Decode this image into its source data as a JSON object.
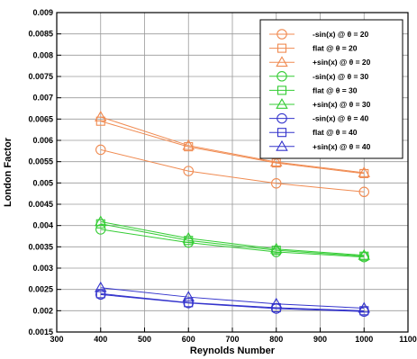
{
  "chart_data": {
    "type": "line",
    "title": "",
    "xlabel": "Reynolds Number",
    "ylabel": "London Factor",
    "xlim": [
      300,
      1100
    ],
    "ylim": [
      0.0015,
      0.009
    ],
    "x_ticks": [
      "300",
      "400",
      "500",
      "600",
      "700",
      "800",
      "900",
      "1000",
      "1100"
    ],
    "y_ticks": [
      "0.0015",
      "0.002",
      "0.0025",
      "0.003",
      "0.0035",
      "0.004",
      "0.0045",
      "0.005",
      "0.0055",
      "0.006",
      "0.0065",
      "0.007",
      "0.0075",
      "0.008",
      "0.0085",
      "0.009"
    ],
    "grid": true,
    "legend_position": "top-right",
    "x": [
      400,
      600,
      800,
      1000
    ],
    "series": [
      {
        "name": "-sin(x) @ θ = 20",
        "color": "#F08A50",
        "marker": "circle",
        "values": [
          0.00578,
          0.00528,
          0.00499,
          0.00479
        ]
      },
      {
        "name": "flat @ θ = 20",
        "color": "#F08A50",
        "marker": "square",
        "values": [
          0.00645,
          0.00585,
          0.00547,
          0.00522
        ]
      },
      {
        "name": "+sin(x) @ θ = 20",
        "color": "#F08A50",
        "marker": "triangle",
        "values": [
          0.00655,
          0.00588,
          0.00549,
          0.00524
        ]
      },
      {
        "name": "-sin(x) @ θ = 30",
        "color": "#33CC33",
        "marker": "circle",
        "values": [
          0.00391,
          0.0036,
          0.00338,
          0.00326
        ]
      },
      {
        "name": "flat @ θ = 30",
        "color": "#33CC33",
        "marker": "square",
        "values": [
          0.00404,
          0.00365,
          0.00342,
          0.00328
        ]
      },
      {
        "name": "+sin(x) @ θ = 30",
        "color": "#33CC33",
        "marker": "triangle",
        "values": [
          0.00409,
          0.0037,
          0.00345,
          0.0033
        ]
      },
      {
        "name": "-sin(x) @ θ = 40",
        "color": "#3333CC",
        "marker": "circle",
        "values": [
          0.00238,
          0.00218,
          0.00205,
          0.00198
        ]
      },
      {
        "name": "flat @ θ = 40",
        "color": "#3333CC",
        "marker": "square",
        "values": [
          0.0024,
          0.00219,
          0.00207,
          0.002
        ]
      },
      {
        "name": "+sin(x) @ θ = 40",
        "color": "#3333CC",
        "marker": "triangle",
        "values": [
          0.00254,
          0.00232,
          0.00216,
          0.00206
        ]
      }
    ]
  }
}
